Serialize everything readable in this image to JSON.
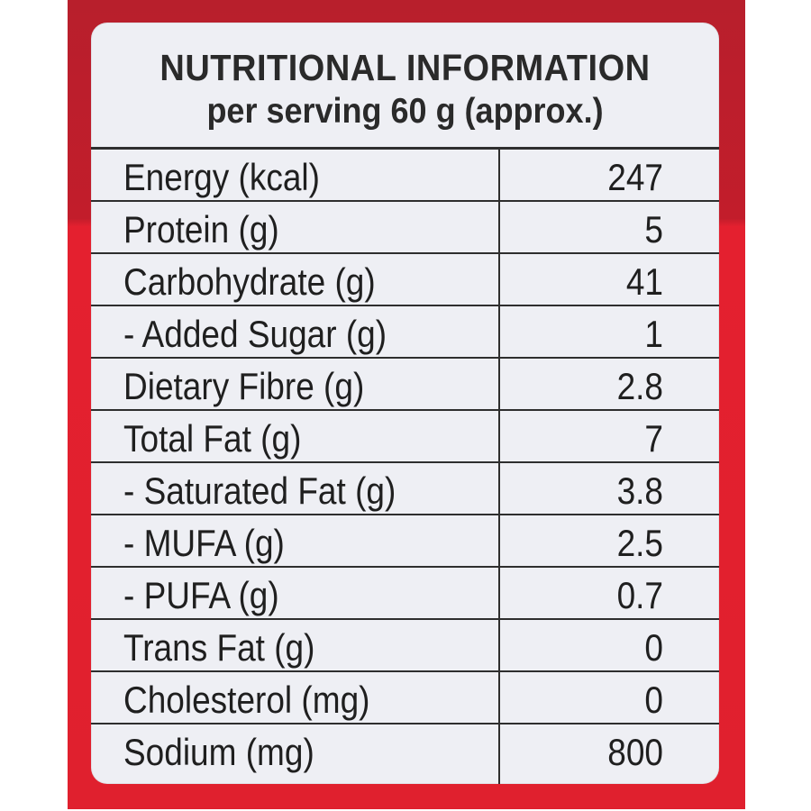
{
  "colors": {
    "package_red": "#e0202e",
    "panel_background": "#eeeff4",
    "text": "#1f1f1f"
  },
  "label": {
    "title": "NUTRITIONAL INFORMATION",
    "subtitle": "per serving 60 g (approx.)",
    "rows": [
      {
        "nutrient": "Energy (kcal)",
        "value": "247"
      },
      {
        "nutrient": "Protein (g)",
        "value": "5"
      },
      {
        "nutrient": "Carbohydrate (g)",
        "value": "41"
      },
      {
        "nutrient": "- Added Sugar (g)",
        "value": "1"
      },
      {
        "nutrient": "Dietary Fibre (g)",
        "value": "2.8"
      },
      {
        "nutrient": "Total Fat (g)",
        "value": "7"
      },
      {
        "nutrient": "- Saturated Fat (g)",
        "value": "3.8"
      },
      {
        "nutrient": "- MUFA (g)",
        "value": "2.5"
      },
      {
        "nutrient": "- PUFA (g)",
        "value": "0.7"
      },
      {
        "nutrient": "Trans Fat (g)",
        "value": "0"
      },
      {
        "nutrient": "Cholesterol (mg)",
        "value": "0"
      },
      {
        "nutrient": "Sodium (mg)",
        "value": "800"
      }
    ]
  }
}
